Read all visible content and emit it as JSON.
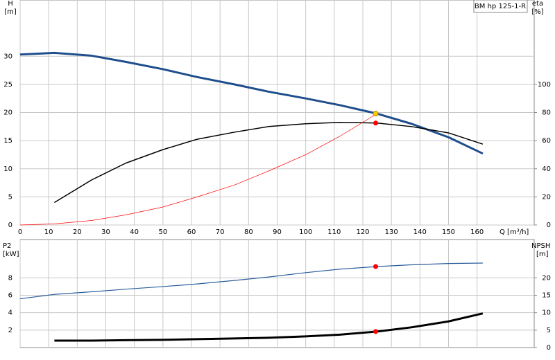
{
  "chart_data": [
    {
      "type": "line",
      "title": "BM hp 125-1-R",
      "y_label": "H",
      "y_unit": "[m]",
      "y2_label": "eta",
      "y2_unit": "[%]",
      "x_label": "Q [m³/h]",
      "xlim": [
        0,
        180
      ],
      "xticks": [
        0,
        10,
        20,
        30,
        40,
        50,
        60,
        70,
        80,
        90,
        100,
        110,
        120,
        130,
        140,
        150,
        160
      ],
      "xtick_labels": true,
      "ylim": [
        0,
        40
      ],
      "yticks": [
        0,
        5,
        10,
        15,
        20,
        25,
        30
      ],
      "y2lim": [
        0,
        160
      ],
      "y2ticks": [
        0,
        20,
        40,
        60,
        80,
        100
      ],
      "grid": true,
      "series": [
        {
          "name": "H",
          "color": "#1f4e8c",
          "width": 3,
          "x": [
            0,
            12,
            25,
            37,
            50,
            62,
            75,
            87,
            100,
            112,
            125,
            137,
            150,
            162
          ],
          "values": [
            30.3,
            30.6,
            30.1,
            29.0,
            27.7,
            26.3,
            25.0,
            23.7,
            22.5,
            21.3,
            19.8,
            18.0,
            15.6,
            12.7
          ]
        },
        {
          "name": "eta",
          "color": "#000000",
          "width": 1.5,
          "axis": "y2",
          "x": [
            12,
            25,
            37,
            50,
            62,
            75,
            87,
            100,
            112,
            125,
            137,
            150,
            162
          ],
          "values": [
            16,
            32,
            44,
            53.6,
            61,
            66,
            70,
            72,
            73,
            72.5,
            70,
            65.5,
            57.5
          ]
        },
        {
          "name": "system",
          "color": "#ff0000",
          "width": 0.7,
          "x": [
            0,
            12,
            25,
            37,
            50,
            62,
            75,
            87,
            100,
            112,
            125
          ],
          "values": [
            0,
            0.2,
            0.8,
            1.8,
            3.2,
            5.0,
            7.1,
            9.6,
            12.5,
            15.8,
            19.8
          ]
        }
      ],
      "points": [
        {
          "x": 124.5,
          "y": 19.8,
          "color": "#ffcc00"
        },
        {
          "x": 124.5,
          "y": 72.5,
          "color": "#ff0000",
          "axis": "y2"
        }
      ]
    },
    {
      "type": "line",
      "y_label": "P2",
      "y_unit": "[kW]",
      "y2_label": "NPSH",
      "y2_unit": "[m]",
      "xlim": [
        0,
        180
      ],
      "xticks": [
        0,
        10,
        20,
        30,
        40,
        50,
        60,
        70,
        80,
        90,
        100,
        110,
        120,
        130,
        140,
        150,
        160
      ],
      "xtick_labels": false,
      "ylim": [
        0,
        12.4
      ],
      "yticks": [
        2,
        4,
        6,
        8
      ],
      "y2lim": [
        0,
        31
      ],
      "y2ticks": [
        0,
        5,
        10,
        15,
        20
      ],
      "grid": true,
      "series": [
        {
          "name": "P2",
          "color": "#2a5e9a",
          "width": 1.2,
          "x": [
            0,
            12,
            25,
            37,
            50,
            62,
            75,
            87,
            100,
            112,
            125,
            137,
            150,
            162
          ],
          "values": [
            5.6,
            6.1,
            6.4,
            6.7,
            7.0,
            7.3,
            7.7,
            8.1,
            8.6,
            9.0,
            9.3,
            9.5,
            9.65,
            9.7
          ]
        },
        {
          "name": "NPSH",
          "color": "#000000",
          "width": 3,
          "axis": "y2",
          "x": [
            12,
            25,
            37,
            50,
            62,
            75,
            87,
            100,
            112,
            125,
            137,
            150,
            162
          ],
          "values": [
            2.0,
            2.0,
            2.1,
            2.2,
            2.4,
            2.6,
            2.8,
            3.2,
            3.7,
            4.6,
            5.8,
            7.5,
            9.8
          ]
        }
      ],
      "points": [
        {
          "x": 124.5,
          "y": 9.3,
          "color": "#ff0000"
        },
        {
          "x": 124.5,
          "y": 4.6,
          "color": "#ff0000",
          "axis": "y2"
        }
      ]
    }
  ]
}
